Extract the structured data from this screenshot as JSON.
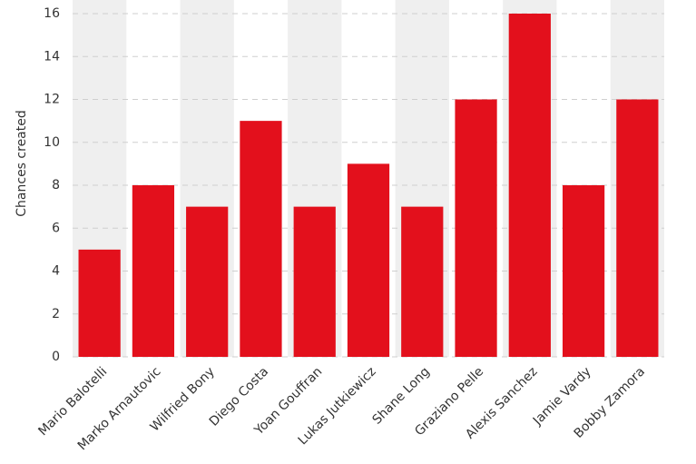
{
  "chart_data": {
    "type": "bar",
    "y_label": "Chances created",
    "categories": [
      "Mario Balotelli",
      "Marko Arnautovic",
      "Wilfried Bony",
      "Diego Costa",
      "Yoan Gouffran",
      "Lukas Jutkiewicz",
      "Shane Long",
      "Graziano Pelle",
      "Alexis Sanchez",
      "Jamie Vardy",
      "Bobby Zamora"
    ],
    "values": [
      5,
      8,
      7,
      11,
      7,
      9,
      7,
      12,
      16,
      8,
      12
    ],
    "color": "#e3101c",
    "ylim": [
      0,
      16
    ],
    "yticks": [
      0,
      2,
      4,
      6,
      8,
      10,
      12,
      14,
      16
    ],
    "grid": true,
    "stripes": true
  }
}
